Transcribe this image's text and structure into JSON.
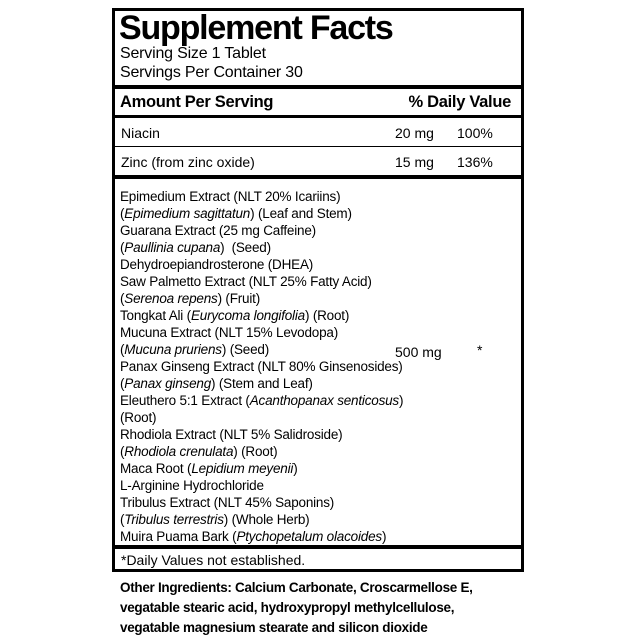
{
  "colors": {
    "ink": "#000000",
    "paper": "#ffffff"
  },
  "label": {
    "title": "Supplement Facts",
    "serving_size": "Serving Size 1 Tablet",
    "servings_per_container": "Servings Per Container 30",
    "header": {
      "amount_col": "Amount Per Serving",
      "dv_col": "% Daily Value"
    },
    "nutrients": [
      {
        "name": "Niacin",
        "amount": "20 mg",
        "dv": "100%"
      },
      {
        "name": "Zinc (from zinc oxide)",
        "amount": "15 mg",
        "dv": "136%"
      }
    ],
    "proprietary_blend": {
      "amount": "500 mg",
      "dv": "*",
      "ingredient_lines": [
        [
          {
            "text": "Epimedium Extract (NLT 20% Icariins)"
          }
        ],
        [
          {
            "text": "("
          },
          {
            "text": "Epimedium sagittatun",
            "italic": true
          },
          {
            "text": ") (Leaf and Stem)"
          }
        ],
        [
          {
            "text": "Guarana Extract (25 mg Caffeine)"
          }
        ],
        [
          {
            "text": "("
          },
          {
            "text": "Paullinia cupana",
            "italic": true
          },
          {
            "text": ")  (Seed)"
          }
        ],
        [
          {
            "text": "Dehydroepiandrosterone (DHEA)"
          }
        ],
        [
          {
            "text": "Saw Palmetto Extract (NLT 25% Fatty Acid)"
          }
        ],
        [
          {
            "text": "("
          },
          {
            "text": "Serenoa repens",
            "italic": true
          },
          {
            "text": ") (Fruit)"
          }
        ],
        [
          {
            "text": "Tongkat Ali ("
          },
          {
            "text": "Eurycoma longifolia",
            "italic": true
          },
          {
            "text": ") (Root)"
          }
        ],
        [
          {
            "text": "Mucuna Extract (NLT 15% Levodopa)"
          }
        ],
        [
          {
            "text": "("
          },
          {
            "text": "Mucuna pruriens",
            "italic": true
          },
          {
            "text": ") (Seed)"
          }
        ],
        [
          {
            "text": "Panax Ginseng Extract (NLT 80% Ginsenosides)"
          }
        ],
        [
          {
            "text": "("
          },
          {
            "text": "Panax ginseng",
            "italic": true
          },
          {
            "text": ") (Stem and Leaf)"
          }
        ],
        [
          {
            "text": "Eleuthero 5:1 Extract ("
          },
          {
            "text": "Acanthopanax senticosus",
            "italic": true
          },
          {
            "text": ")"
          }
        ],
        [
          {
            "text": "(Root)"
          }
        ],
        [
          {
            "text": "Rhodiola Extract (NLT 5% Salidroside)"
          }
        ],
        [
          {
            "text": "("
          },
          {
            "text": "Rhodiola crenulata",
            "italic": true
          },
          {
            "text": ") (Root)"
          }
        ],
        [
          {
            "text": "Maca Root ("
          },
          {
            "text": "Lepidium meyenii",
            "italic": true
          },
          {
            "text": ")"
          }
        ],
        [
          {
            "text": "L-Arginine Hydrochloride"
          }
        ],
        [
          {
            "text": "Tribulus Extract (NLT 45% Saponins)"
          }
        ],
        [
          {
            "text": "("
          },
          {
            "text": "Tribulus terrestris",
            "italic": true
          },
          {
            "text": ") (Whole Herb)"
          }
        ],
        [
          {
            "text": "Muira Puama Bark ("
          },
          {
            "text": "Ptychopetalum olacoides",
            "italic": true
          },
          {
            "text": ")"
          }
        ]
      ]
    },
    "footnote": "*Daily Values not established.",
    "other_ingredients_lines": [
      "Other Ingredients: Calcium Carbonate, Croscarmellose E,",
      "vegatable stearic acid, hydroxypropyl methylcellulose,",
      "vegatable magnesium stearate and silicon dioxide"
    ]
  }
}
